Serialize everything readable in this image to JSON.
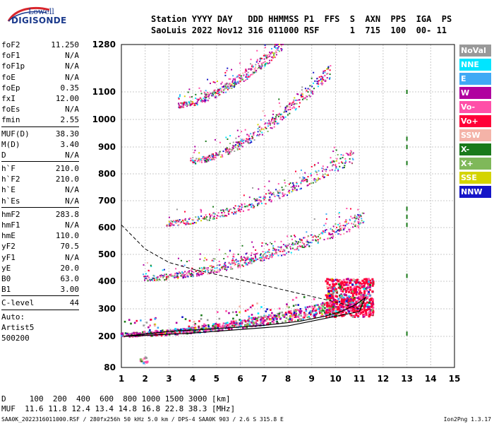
{
  "logo": {
    "line1": "Lowell",
    "line2": "DIGISONDE"
  },
  "header": {
    "line1": "Station YYYY DAY   DDD HHMMSS P1  FFS  S  AXN  PPS  IGA  PS",
    "line2": "SaoLuis 2022 Nov12 316 011000 RSF      1  715  100  00- 11"
  },
  "params": [
    {
      "k": "foF2",
      "v": "11.250"
    },
    {
      "k": "foF1",
      "v": "N/A"
    },
    {
      "k": "foF1p",
      "v": "N/A"
    },
    {
      "k": "foE",
      "v": "N/A"
    },
    {
      "k": "foEp",
      "v": "0.35"
    },
    {
      "k": "fxI",
      "v": "12.00"
    },
    {
      "k": "foEs",
      "v": "N/A"
    },
    {
      "k": "fmin",
      "v": "2.55"
    },
    {
      "sep": true
    },
    {
      "k": "MUF(D)",
      "v": "38.30"
    },
    {
      "k": "M(D)",
      "v": "3.40"
    },
    {
      "k": "D",
      "v": "N/A"
    },
    {
      "sep": true
    },
    {
      "k": "h`F",
      "v": "210.0"
    },
    {
      "k": "h`F2",
      "v": "210.0"
    },
    {
      "k": "h`E",
      "v": "N/A"
    },
    {
      "k": "h`Es",
      "v": "N/A"
    },
    {
      "sep": true
    },
    {
      "k": "hmF2",
      "v": "283.8"
    },
    {
      "k": "hmF1",
      "v": "N/A"
    },
    {
      "k": "hmE",
      "v": "110.0"
    },
    {
      "k": "yF2",
      "v": "70.5"
    },
    {
      "k": "yF1",
      "v": "N/A"
    },
    {
      "k": "yE",
      "v": "20.0"
    },
    {
      "k": "B0",
      "v": "63.0"
    },
    {
      "k": "B1",
      "v": "3.00"
    },
    {
      "sep": true
    },
    {
      "k": "C-level",
      "v": "44"
    },
    {
      "sep": true
    },
    {
      "t": "Auto:"
    },
    {
      "t": "Artist5"
    },
    {
      "t": "500200"
    }
  ],
  "legend": [
    {
      "label": "NoVal",
      "color": "#999999"
    },
    {
      "label": "NNE",
      "color": "#00e5ff"
    },
    {
      "label": "E",
      "color": "#3fa9f5"
    },
    {
      "label": "W",
      "color": "#b0009f"
    },
    {
      "label": "Vo-",
      "color": "#ff4fa8"
    },
    {
      "label": "Vo+",
      "color": "#ff0038"
    },
    {
      "label": "SSW",
      "color": "#f4b3a8"
    },
    {
      "label": "X-",
      "color": "#1a7a1a"
    },
    {
      "label": "X+",
      "color": "#7fb85a"
    },
    {
      "label": "SSE",
      "color": "#d4d400"
    },
    {
      "label": "NNW",
      "color": "#1515c8"
    }
  ],
  "muf_table": {
    "line1": "D     100  200  400  600  800 1000 1500 3000 [km]",
    "line2": "MUF  11.6 11.8 12.4 13.4 14.8 16.8 22.8 38.3 [MHz]"
  },
  "footer": {
    "left": "SAA0K_2022316011000.RSF / 280fx256h 50 kHz 5.0 km / DPS-4 SAA0K 903 / 2.6 S 315.8 E",
    "right": "Ion2Png 1.3.17"
  },
  "chart_data": {
    "type": "scatter",
    "xlim": [
      1,
      15
    ],
    "xticks": [
      1,
      2,
      3,
      4,
      5,
      6,
      7,
      8,
      9,
      10,
      11,
      12,
      13,
      14,
      15
    ],
    "yticks": [
      80,
      200,
      300,
      400,
      500,
      600,
      700,
      800,
      900,
      1000,
      1100,
      1280
    ],
    "grid": true,
    "traces": [
      {
        "name": "1-hop",
        "fstart": 1.0,
        "fend": 11.3,
        "h0": 205,
        "h1": 330
      },
      {
        "name": "2-hop",
        "fstart": 1.9,
        "fend": 11.2,
        "h0": 410,
        "h1": 630
      },
      {
        "name": "3-hop",
        "fstart": 2.9,
        "fend": 10.8,
        "h0": 615,
        "h1": 870
      },
      {
        "name": "4-hop",
        "fstart": 3.9,
        "fend": 9.8,
        "h0": 845,
        "h1": 1180
      },
      {
        "name": "5-hop",
        "fstart": 3.4,
        "fend": 7.8,
        "h0": 1050,
        "h1": 1280
      }
    ],
    "profile": {
      "f": [
        1.0,
        2.0,
        3.0,
        4.0,
        5.0,
        6.0,
        7.0,
        8.0,
        9.0,
        10.0,
        11.0
      ],
      "h": [
        610,
        520,
        470,
        445,
        425,
        405,
        385,
        365,
        345,
        325,
        300
      ]
    },
    "xmarks": {
      "f": 13.0,
      "h": [
        1100,
        930,
        900,
        840,
        670,
        640,
        610,
        420,
        210
      ]
    }
  }
}
